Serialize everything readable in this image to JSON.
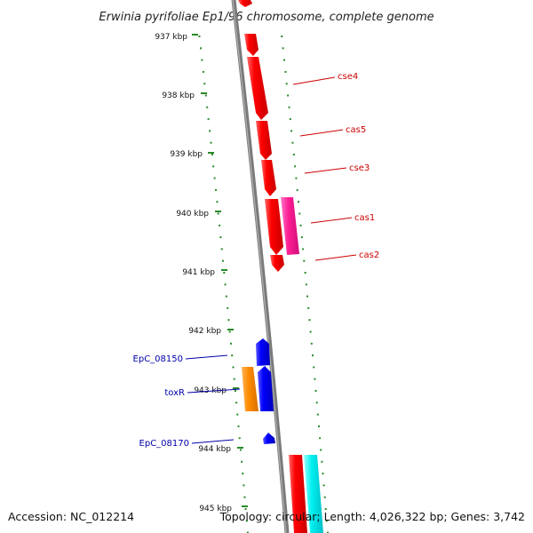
{
  "title": "Erwinia pyrifoliae Ep1/96 chromosome, complete genome",
  "accession_text": "Accession: NC_012214",
  "summary_text": "Topology: circular; Length: 4,026,322 bp; Genes: 3,742",
  "ticks": [
    "937 kbp",
    "938 kbp",
    "939 kbp",
    "940 kbp",
    "941 kbp",
    "942 kbp",
    "943 kbp",
    "944 kbp",
    "945 kbp"
  ],
  "gene_labels": {
    "cse4": "cse4",
    "cas5": "cas5",
    "cse3": "cse3",
    "cas1": "cas1",
    "cas2": "cas2",
    "EpC_08150": "EpC_08150",
    "toxR": "toxR",
    "EpC_08170": "EpC_08170"
  },
  "colors": {
    "backbone": "#7a7a7a",
    "track_dots": "#2a8a2a",
    "cas_genes": "#ff0000",
    "cas1_other": "#ff2a9a",
    "blue_genes": "#0000ff",
    "orange_gene": "#ff8c00",
    "cyan_gene": "#00ffff"
  }
}
